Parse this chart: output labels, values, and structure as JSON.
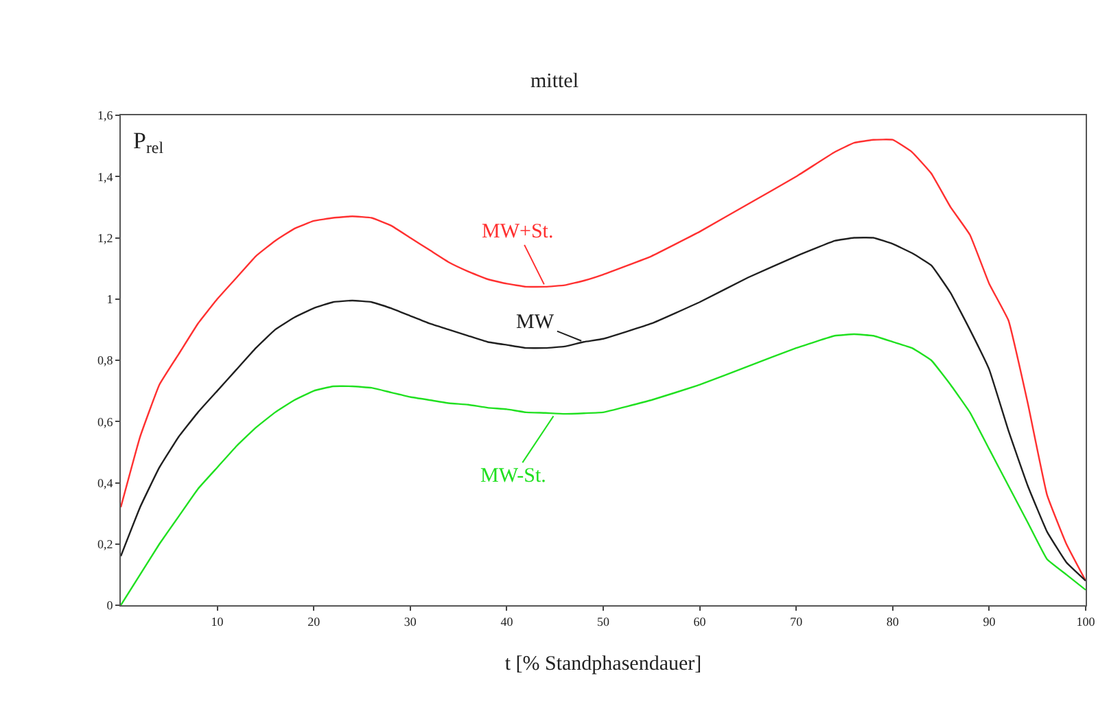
{
  "chart_data": {
    "type": "line",
    "title": "mittel",
    "xlabel": "t [% Standphasendauer]",
    "ylabel": "P$_{rel}$",
    "x": [
      0,
      2,
      4,
      6,
      8,
      10,
      12,
      14,
      16,
      18,
      20,
      22,
      24,
      26,
      28,
      30,
      32,
      34,
      36,
      38,
      40,
      42,
      44,
      46,
      48,
      50,
      55,
      60,
      65,
      70,
      74,
      76,
      78,
      80,
      82,
      84,
      86,
      88,
      90,
      92,
      94,
      96,
      98,
      100
    ],
    "series": [
      {
        "color": "#ff3030",
        "values": [
          0.32,
          0.55,
          0.72,
          0.82,
          0.92,
          1.0,
          1.07,
          1.14,
          1.19,
          1.23,
          1.255,
          1.265,
          1.27,
          1.265,
          1.24,
          1.2,
          1.16,
          1.12,
          1.09,
          1.065,
          1.05,
          1.04,
          1.04,
          1.045,
          1.06,
          1.08,
          1.14,
          1.22,
          1.31,
          1.4,
          1.48,
          1.51,
          1.52,
          1.52,
          1.48,
          1.41,
          1.3,
          1.21,
          1.05,
          0.93,
          0.66,
          0.36,
          0.2,
          0.08
        ]
      },
      {
        "color": "#202020",
        "values": [
          0.16,
          0.32,
          0.45,
          0.55,
          0.63,
          0.7,
          0.77,
          0.84,
          0.9,
          0.94,
          0.97,
          0.99,
          0.995,
          0.99,
          0.97,
          0.945,
          0.92,
          0.9,
          0.88,
          0.86,
          0.85,
          0.84,
          0.84,
          0.845,
          0.86,
          0.87,
          0.92,
          0.99,
          1.07,
          1.14,
          1.19,
          1.2,
          1.2,
          1.18,
          1.15,
          1.11,
          1.02,
          0.9,
          0.77,
          0.57,
          0.39,
          0.24,
          0.14,
          0.08
        ]
      },
      {
        "color": "#20e020",
        "values": [
          0.0,
          0.1,
          0.2,
          0.29,
          0.38,
          0.45,
          0.52,
          0.58,
          0.63,
          0.67,
          0.7,
          0.715,
          0.715,
          0.71,
          0.695,
          0.68,
          0.67,
          0.66,
          0.655,
          0.645,
          0.64,
          0.63,
          0.628,
          0.625,
          0.627,
          0.63,
          0.67,
          0.72,
          0.78,
          0.84,
          0.88,
          0.885,
          0.88,
          0.86,
          0.84,
          0.8,
          0.72,
          0.63,
          0.51,
          0.39,
          0.27,
          0.15,
          0.1,
          0.05
        ]
      }
    ],
    "annotations": [
      {
        "text": "MW+St.",
        "x": 44,
        "y": 1.04
      },
      {
        "text": "MW",
        "x": 48,
        "y": 0.86
      },
      {
        "text": "MW-St.",
        "x": 45,
        "y": 0.625
      }
    ],
    "xlim": [
      0,
      100
    ],
    "xticks": [
      10,
      20,
      30,
      40,
      50,
      60,
      70,
      80,
      90,
      100
    ],
    "ylim": [
      0,
      1.6
    ],
    "yticks": [
      0,
      {
        "value": 0.2,
        "label": "0,2"
      },
      {
        "value": 0.4,
        "label": "0,4"
      },
      {
        "value": 0.6,
        "label": "0,6"
      },
      {
        "value": 0.8,
        "label": "0,8"
      },
      1,
      {
        "value": 1.2,
        "label": "1,2"
      },
      {
        "value": 1.4,
        "label": "1,4"
      },
      {
        "value": 1.6,
        "label": "1,6"
      }
    ],
    "marker": "none",
    "line_style": "solid"
  }
}
